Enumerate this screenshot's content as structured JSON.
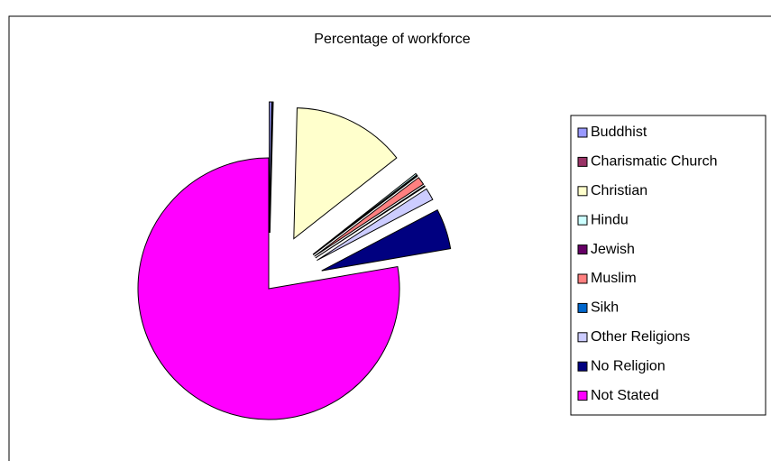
{
  "chart_data": {
    "type": "pie",
    "title": "Percentage of workforce",
    "categories": [
      "Buddhist",
      "Charismatic Church",
      "Christian",
      "Hindu",
      "Jewish",
      "Muslim",
      "Sikh",
      "Other Religions",
      "No Religion",
      "Not Stated"
    ],
    "values": [
      0.3,
      0.1,
      14,
      0.2,
      0.1,
      1,
      0.1,
      1.5,
      5,
      77.7
    ],
    "colors": [
      "#9999ff",
      "#993366",
      "#ffffcc",
      "#ccffff",
      "#660066",
      "#ff8080",
      "#0066cc",
      "#ccccff",
      "#000080",
      "#ff00ff"
    ],
    "legend": "right"
  }
}
